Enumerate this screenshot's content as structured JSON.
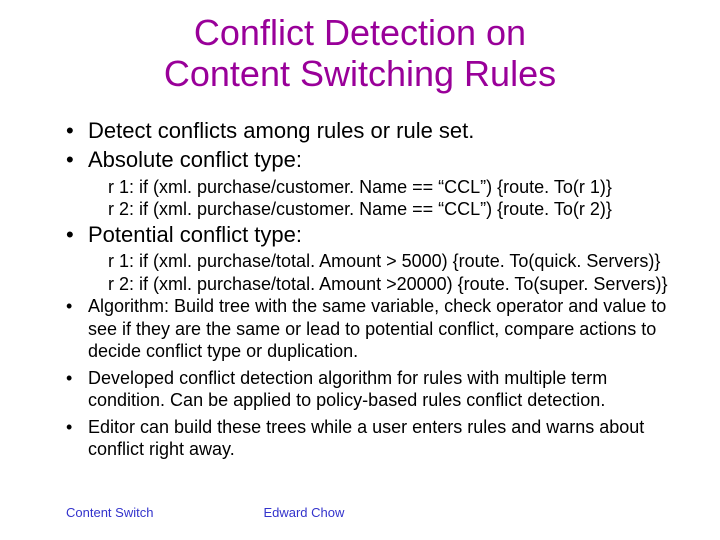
{
  "title_line1": "Conflict Detection on",
  "title_line2": "Content Switching Rules",
  "bullets": {
    "b1": "Detect conflicts among rules or rule set.",
    "b2": "Absolute conflict type:",
    "b2_sub1": "r 1: if (xml. purchase/customer. Name == “CCL”) {route. To(r 1)}",
    "b2_sub2": "r 2: if (xml. purchase/customer. Name == “CCL”) {route. To(r 2)}",
    "b3": "Potential conflict type:",
    "b3_sub1": "r 1: if (xml. purchase/total. Amount > 5000) {route. To(quick. Servers)}",
    "b3_sub2": "r 2: if (xml. purchase/total. Amount >20000) {route. To(super. Servers)}",
    "b4": "Algorithm: Build tree with the same variable, check operator and value to see if they are the same or lead to potential conflict, compare actions to decide conflict type or duplication.",
    "b5": "Developed conflict detection algorithm for rules with multiple term condition.  Can be applied to policy-based rules conflict detection.",
    "b6": "Editor can build these trees while a user enters rules and warns about conflict right away."
  },
  "footer": {
    "left": "Content Switch",
    "right": "Edward Chow"
  },
  "colors": {
    "title": "#990099",
    "body": "#000000",
    "footer": "#3333cc",
    "background": "#ffffff"
  },
  "fonts": {
    "title_size": 36,
    "body_large": 22,
    "body_small": 18,
    "footer_size": 13
  }
}
